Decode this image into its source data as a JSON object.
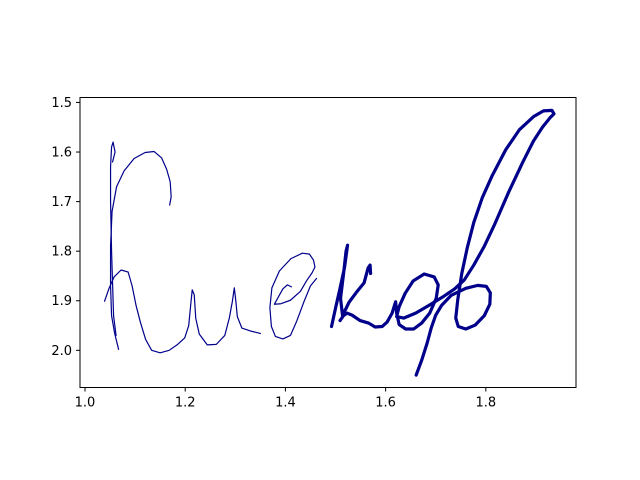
{
  "chart_data": {
    "type": "line",
    "title": "",
    "xlabel": "",
    "ylabel": "",
    "xlim": [
      0.99,
      1.98
    ],
    "ylim": [
      2.075,
      1.49
    ],
    "y_inverted": true,
    "grid": false,
    "legend": "none",
    "x_ticks": [
      "1.0",
      "1.2",
      "1.4",
      "1.6",
      "1.8"
    ],
    "y_ticks": [
      "1.5",
      "1.6",
      "1.7",
      "1.8",
      "1.9",
      "2.0"
    ],
    "series": [
      {
        "color": "#00008b",
        "stroke": "thin",
        "points": [
          [
            1.039,
            1.901
          ],
          [
            1.048,
            1.875
          ],
          [
            1.058,
            1.852
          ],
          [
            1.072,
            1.838
          ],
          [
            1.086,
            1.842
          ],
          [
            1.094,
            1.87
          ],
          [
            1.102,
            1.91
          ],
          [
            1.111,
            1.945
          ],
          [
            1.121,
            1.978
          ],
          [
            1.133,
            2.0
          ],
          [
            1.15,
            2.005
          ],
          [
            1.168,
            2.0
          ],
          [
            1.185,
            1.988
          ],
          [
            1.199,
            1.975
          ],
          [
            1.207,
            1.95
          ],
          [
            1.211,
            1.908
          ],
          [
            1.214,
            1.878
          ],
          [
            1.218,
            1.888
          ],
          [
            1.221,
            1.935
          ],
          [
            1.228,
            1.967
          ],
          [
            1.244,
            1.989
          ],
          [
            1.262,
            1.988
          ],
          [
            1.279,
            1.97
          ],
          [
            1.288,
            1.935
          ],
          [
            1.294,
            1.902
          ],
          [
            1.298,
            1.874
          ],
          [
            1.301,
            1.9
          ],
          [
            1.304,
            1.932
          ],
          [
            1.313,
            1.955
          ],
          [
            1.33,
            1.961
          ],
          [
            1.35,
            1.966
          ]
        ]
      },
      {
        "color": "#00008b",
        "stroke": "thin",
        "points": [
          [
            1.067,
            1.998
          ],
          [
            1.059,
            1.965
          ],
          [
            1.053,
            1.93
          ],
          [
            1.051,
            1.87
          ],
          [
            1.051,
            1.79
          ],
          [
            1.054,
            1.72
          ],
          [
            1.063,
            1.67
          ],
          [
            1.078,
            1.638
          ],
          [
            1.098,
            1.613
          ],
          [
            1.12,
            1.601
          ],
          [
            1.138,
            1.599
          ],
          [
            1.153,
            1.612
          ],
          [
            1.163,
            1.635
          ],
          [
            1.17,
            1.66
          ],
          [
            1.172,
            1.69
          ],
          [
            1.169,
            1.707
          ]
        ]
      },
      {
        "color": "#00008b",
        "stroke": "thin",
        "points": [
          [
            1.062,
            1.97
          ],
          [
            1.057,
            1.93
          ],
          [
            1.053,
            1.8
          ],
          [
            1.051,
            1.7
          ],
          [
            1.051,
            1.63
          ],
          [
            1.053,
            1.59
          ],
          [
            1.056,
            1.58
          ],
          [
            1.06,
            1.6
          ],
          [
            1.055,
            1.62
          ]
        ]
      },
      {
        "color": "#00008b",
        "stroke": "thin",
        "points": [
          [
            1.412,
            1.872
          ],
          [
            1.404,
            1.868
          ],
          [
            1.395,
            1.876
          ],
          [
            1.385,
            1.894
          ],
          [
            1.378,
            1.907
          ],
          [
            1.391,
            1.906
          ],
          [
            1.41,
            1.899
          ],
          [
            1.43,
            1.881
          ],
          [
            1.442,
            1.86
          ],
          [
            1.453,
            1.844
          ],
          [
            1.459,
            1.832
          ],
          [
            1.456,
            1.818
          ],
          [
            1.448,
            1.806
          ],
          [
            1.434,
            1.804
          ],
          [
            1.411,
            1.815
          ],
          [
            1.388,
            1.84
          ],
          [
            1.373,
            1.874
          ],
          [
            1.369,
            1.914
          ],
          [
            1.372,
            1.952
          ],
          [
            1.38,
            1.972
          ],
          [
            1.395,
            1.977
          ],
          [
            1.41,
            1.97
          ],
          [
            1.423,
            1.94
          ],
          [
            1.437,
            1.902
          ],
          [
            1.45,
            1.87
          ],
          [
            1.462,
            1.855
          ]
        ]
      },
      {
        "color": "#00008b",
        "stroke": "thick",
        "points": [
          [
            1.492,
            1.952
          ],
          [
            1.5,
            1.915
          ],
          [
            1.509,
            1.875
          ],
          [
            1.518,
            1.833
          ],
          [
            1.524,
            1.788
          ],
          [
            1.521,
            1.8
          ],
          [
            1.516,
            1.846
          ],
          [
            1.51,
            1.895
          ],
          [
            1.514,
            1.93
          ],
          [
            1.527,
            1.903
          ],
          [
            1.544,
            1.88
          ],
          [
            1.557,
            1.864
          ],
          [
            1.565,
            1.834
          ],
          [
            1.569,
            1.828
          ],
          [
            1.57,
            1.845
          ]
        ]
      },
      {
        "color": "#00008b",
        "stroke": "thick",
        "points": [
          [
            1.509,
            1.94
          ],
          [
            1.516,
            1.93
          ],
          [
            1.523,
            1.925
          ],
          [
            1.533,
            1.929
          ],
          [
            1.549,
            1.94
          ],
          [
            1.566,
            1.945
          ],
          [
            1.579,
            1.953
          ],
          [
            1.593,
            1.952
          ],
          [
            1.603,
            1.943
          ],
          [
            1.613,
            1.925
          ],
          [
            1.619,
            1.905
          ],
          [
            1.62,
            1.902
          ],
          [
            1.622,
            1.925
          ],
          [
            1.627,
            1.948
          ],
          [
            1.64,
            1.957
          ],
          [
            1.656,
            1.957
          ],
          [
            1.672,
            1.945
          ],
          [
            1.688,
            1.925
          ],
          [
            1.701,
            1.895
          ],
          [
            1.705,
            1.868
          ],
          [
            1.697,
            1.852
          ],
          [
            1.677,
            1.846
          ],
          [
            1.655,
            1.86
          ],
          [
            1.639,
            1.885
          ],
          [
            1.627,
            1.912
          ],
          [
            1.622,
            1.932
          ],
          [
            1.636,
            1.935
          ],
          [
            1.66,
            1.925
          ],
          [
            1.687,
            1.909
          ],
          [
            1.713,
            1.893
          ],
          [
            1.738,
            1.876
          ],
          [
            1.757,
            1.858
          ],
          [
            1.776,
            1.828
          ],
          [
            1.797,
            1.79
          ],
          [
            1.818,
            1.745
          ],
          [
            1.846,
            1.68
          ],
          [
            1.874,
            1.62
          ],
          [
            1.895,
            1.578
          ],
          [
            1.913,
            1.55
          ],
          [
            1.928,
            1.531
          ],
          [
            1.936,
            1.523
          ],
          [
            1.932,
            1.516
          ],
          [
            1.915,
            1.517
          ],
          [
            1.896,
            1.528
          ],
          [
            1.867,
            1.555
          ],
          [
            1.84,
            1.595
          ],
          [
            1.813,
            1.647
          ],
          [
            1.793,
            1.692
          ],
          [
            1.776,
            1.742
          ],
          [
            1.763,
            1.793
          ],
          [
            1.752,
            1.845
          ],
          [
            1.744,
            1.898
          ],
          [
            1.74,
            1.935
          ],
          [
            1.745,
            1.952
          ],
          [
            1.76,
            1.957
          ],
          [
            1.779,
            1.949
          ],
          [
            1.797,
            1.93
          ],
          [
            1.808,
            1.907
          ],
          [
            1.809,
            1.884
          ],
          [
            1.801,
            1.871
          ],
          [
            1.784,
            1.869
          ],
          [
            1.76,
            1.875
          ],
          [
            1.731,
            1.889
          ],
          [
            1.712,
            1.909
          ],
          [
            1.7,
            1.929
          ],
          [
            1.691,
            1.955
          ],
          [
            1.683,
            1.985
          ],
          [
            1.672,
            2.02
          ],
          [
            1.661,
            2.05
          ]
        ]
      }
    ]
  }
}
